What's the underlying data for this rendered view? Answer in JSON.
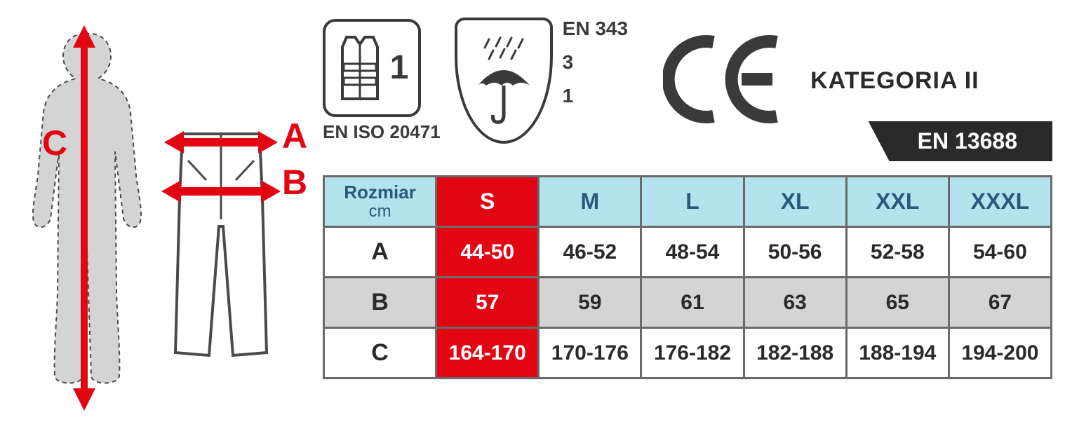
{
  "diagram": {
    "body_label": "C",
    "pants_label_top": "A",
    "pants_label_bottom": "B",
    "accent_color": "#e20613",
    "outline_color": "#6a6a6a"
  },
  "certifications": {
    "vest": {
      "class_number": "1",
      "standard": "EN ISO 20471"
    },
    "umbrella": {
      "standard": "EN 343",
      "val_top": "3",
      "val_bottom": "1"
    },
    "ce_mark": "CE",
    "category_label": "KATEGORIA II",
    "en_badge": "EN 13688"
  },
  "table": {
    "type": "table",
    "corner_label": "Rozmiar",
    "corner_sub": "cm",
    "highlight_col_index": 0,
    "sizes": [
      "S",
      "M",
      "L",
      "XL",
      "XXL",
      "XXXL"
    ],
    "rows": [
      {
        "label": "A",
        "values": [
          "44-50",
          "46-52",
          "48-54",
          "50-56",
          "52-58",
          "54-60"
        ],
        "alt": false
      },
      {
        "label": "B",
        "values": [
          "57",
          "59",
          "61",
          "63",
          "65",
          "67"
        ],
        "alt": true
      },
      {
        "label": "C",
        "values": [
          "164-170",
          "170-176",
          "176-182",
          "182-188",
          "188-194",
          "194-200"
        ],
        "alt": false
      }
    ],
    "header_bg": "#b5e3ed",
    "highlight_bg": "#e20613",
    "alt_bg": "#d4d4d4",
    "border_color": "#6a6a6a",
    "font_size_cell": 30,
    "font_size_header": 32
  }
}
